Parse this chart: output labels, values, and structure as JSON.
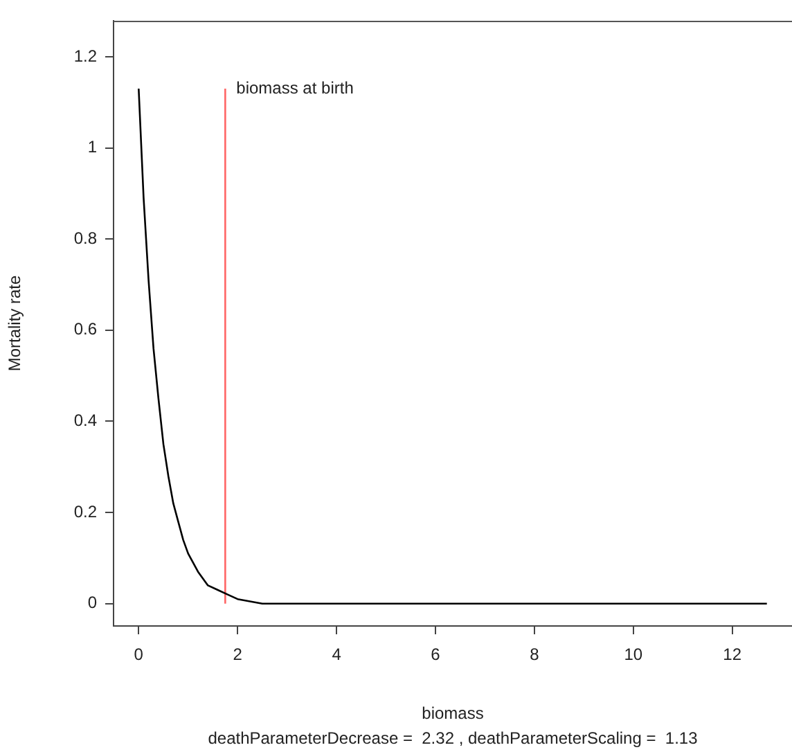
{
  "chart_data": {
    "type": "line",
    "xlabel": "biomass",
    "ylabel": "Mortality rate",
    "xlim": [
      -0.508,
      13.208
    ],
    "ylim": [
      -0.049,
      1.279
    ],
    "xticks": [
      0,
      2,
      4,
      6,
      8,
      10,
      12
    ],
    "yticks": [
      0,
      0.2,
      0.4,
      0.6,
      0.8,
      1,
      1.2
    ],
    "series": [
      {
        "color": "#000000",
        "x": [
          0,
          0.1,
          0.2,
          0.3,
          0.4,
          0.5,
          0.6,
          0.7,
          0.8,
          0.9,
          1,
          1.2,
          1.4,
          1.6,
          1.8,
          2,
          2.5,
          3,
          12.7
        ],
        "values": [
          1.13,
          0.89,
          0.71,
          0.56,
          0.45,
          0.35,
          0.28,
          0.22,
          0.18,
          0.14,
          0.11,
          0.07,
          0.04,
          0.03,
          0.02,
          0.01,
          0,
          0,
          0
        ]
      },
      {
        "color": "#ff6666",
        "x": [
          1.75,
          1.75
        ],
        "values": [
          0,
          1.13
        ]
      }
    ],
    "annotations": [
      {
        "text": "biomass at birth",
        "x": 1.75,
        "y": 1.13
      },
      "deathParameterDecrease =  2.32 , deathParameterScaling =  1.13"
    ],
    "grid": false,
    "legend": false,
    "marker": "none",
    "line_style": "solid"
  }
}
